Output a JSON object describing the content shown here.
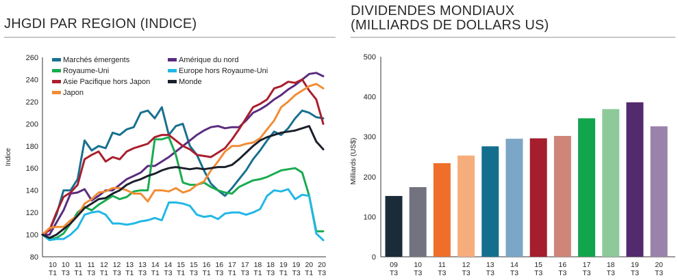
{
  "left_chart": {
    "title": "JHGDI PAR REGION (INDICE)",
    "chart_data": {
      "type": "line",
      "ylabel": "Indice",
      "ylim": [
        80,
        260
      ],
      "yticks": [
        80,
        100,
        120,
        140,
        160,
        180,
        200,
        220,
        240,
        260
      ],
      "x_tick_labels": [
        [
          "10",
          "T1"
        ],
        [
          "10",
          "T3"
        ],
        [
          "11",
          "T1"
        ],
        [
          "11",
          "T3"
        ],
        [
          "12",
          "T1"
        ],
        [
          "12",
          "T3"
        ],
        [
          "13",
          "T1"
        ],
        [
          "13",
          "T3"
        ],
        [
          "14",
          "T1"
        ],
        [
          "14",
          "T3"
        ],
        [
          "15",
          "T1"
        ],
        [
          "15",
          "T3"
        ],
        [
          "16",
          "T1"
        ],
        [
          "16",
          "T3"
        ],
        [
          "17",
          "T1"
        ],
        [
          "17",
          "T3"
        ],
        [
          "18",
          "T1"
        ],
        [
          "18",
          "T3"
        ],
        [
          "19",
          "T1"
        ],
        [
          "19",
          "T3"
        ],
        [
          "20",
          "T1"
        ],
        [
          "20",
          "T3"
        ]
      ],
      "legend_position": "top-left",
      "grid": false,
      "series": [
        {
          "name": "Marchés émergents",
          "color": "#18708f",
          "values": [
            100,
            104,
            118,
            140,
            140,
            150,
            185,
            176,
            180,
            178,
            192,
            190,
            195,
            197,
            210,
            212,
            205,
            215,
            190,
            198,
            200,
            180,
            172,
            158,
            146,
            140,
            135,
            142,
            150,
            158,
            168,
            176,
            185,
            193,
            190,
            196,
            205,
            212,
            210,
            206,
            205
          ]
        },
        {
          "name": "Amérique du nord",
          "color": "#5a2c7e",
          "values": [
            100,
            100,
            111,
            122,
            137,
            138,
            141,
            131,
            135,
            140,
            140,
            145,
            150,
            153,
            156,
            162,
            162,
            166,
            170,
            175,
            180,
            185,
            190,
            194,
            197,
            198,
            196,
            197,
            197,
            203,
            210,
            213,
            217,
            222,
            226,
            231,
            235,
            240,
            245,
            246,
            243
          ]
        },
        {
          "name": "Royaume-Uni",
          "color": "#19ab4f",
          "values": [
            100,
            96,
            97,
            101,
            110,
            120,
            125,
            122,
            127,
            131,
            135,
            132,
            134,
            139,
            140,
            140,
            186,
            186,
            188,
            172,
            147,
            145,
            145,
            147,
            143,
            140,
            138,
            137,
            143,
            146,
            149,
            150,
            152,
            155,
            158,
            159,
            160,
            156,
            135,
            103,
            103
          ]
        },
        {
          "name": "Europe hors Royaume-Uni",
          "color": "#21b7e6",
          "values": [
            100,
            95,
            96,
            96,
            100,
            106,
            118,
            120,
            121,
            118,
            110,
            110,
            109,
            110,
            112,
            113,
            115,
            113,
            129,
            129,
            128,
            126,
            118,
            116,
            117,
            114,
            119,
            120,
            120,
            118,
            120,
            123,
            135,
            140,
            139,
            141,
            132,
            136,
            135,
            101,
            95
          ]
        },
        {
          "name": "Asie Pacifique hors Japon",
          "color": "#a91e2d",
          "values": [
            100,
            104,
            120,
            134,
            138,
            145,
            168,
            172,
            175,
            166,
            170,
            168,
            175,
            178,
            180,
            182,
            188,
            190,
            190,
            185,
            180,
            177,
            172,
            171,
            170,
            174,
            178,
            186,
            195,
            205,
            215,
            218,
            222,
            232,
            234,
            238,
            237,
            240,
            230,
            222,
            200
          ]
        },
        {
          "name": "Japon",
          "color": "#f28c35",
          "values": [
            100,
            106,
            107,
            107,
            113,
            117,
            128,
            132,
            138,
            139,
            142,
            142,
            140,
            137,
            137,
            130,
            140,
            140,
            139,
            142,
            138,
            140,
            145,
            148,
            158,
            166,
            175,
            180,
            180,
            182,
            183,
            187,
            195,
            203,
            215,
            220,
            226,
            230,
            234,
            236,
            232
          ]
        },
        {
          "name": "Monde",
          "color": "#1b1f2b",
          "values": [
            100,
            97,
            100,
            105,
            110,
            117,
            124,
            128,
            132,
            133,
            137,
            140,
            145,
            148,
            150,
            153,
            155,
            158,
            160,
            161,
            160,
            159,
            160,
            159,
            160,
            161,
            161,
            163,
            168,
            174,
            180,
            185,
            188,
            190,
            192,
            193,
            194,
            196,
            198,
            184,
            177
          ]
        }
      ]
    }
  },
  "right_chart": {
    "title": "DIVIDENDES MONDIAUX (MILLIARDS DE DOLLARS US)",
    "title_lines": [
      "DIVIDENDES MONDIAUX",
      "(MILLIARDS DE DOLLARS US)"
    ],
    "chart_data": {
      "type": "bar",
      "ylabel": "Milliards (US$)",
      "ylim": [
        0,
        500
      ],
      "yticks": [
        0,
        100,
        200,
        300,
        400,
        500
      ],
      "categories": [
        [
          "09",
          "T3"
        ],
        [
          "10",
          "T3"
        ],
        [
          "11",
          "T3"
        ],
        [
          "12",
          "T3"
        ],
        [
          "13",
          "T3"
        ],
        [
          "14",
          "T3"
        ],
        [
          "15",
          "T3"
        ],
        [
          "16",
          "T3"
        ],
        [
          "17",
          "T3"
        ],
        [
          "18",
          "T3"
        ],
        [
          "19",
          "T3"
        ],
        [
          "20",
          "T3"
        ]
      ],
      "values": [
        152,
        174,
        234,
        253,
        276,
        295,
        296,
        302,
        346,
        369,
        386,
        326
      ],
      "colors": [
        "#1b2b3a",
        "#72737f",
        "#ef6f2a",
        "#f6ad7c",
        "#146f8e",
        "#7ca6c6",
        "#a51e2e",
        "#cf8678",
        "#13a44e",
        "#8ec99a",
        "#522a6e",
        "#9a83ab"
      ],
      "grid": false
    }
  }
}
